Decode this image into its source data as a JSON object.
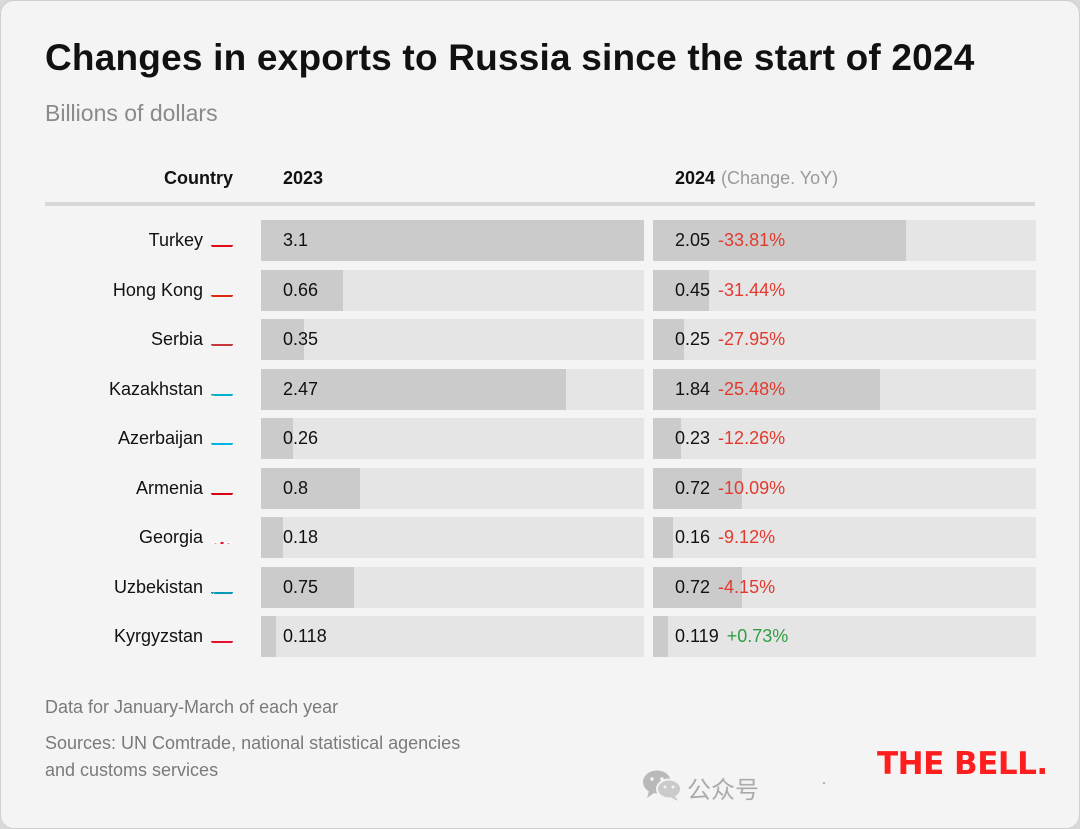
{
  "title": "Changes in exports to Russia since the start of 2024",
  "subtitle": "Billions of dollars",
  "headers": {
    "country": "Country",
    "y2023": "2023",
    "y2024": "2024",
    "y2024_note": "(Change. YoY)"
  },
  "chart_data": {
    "type": "bar",
    "title": "Changes in exports to Russia since the start of 2024",
    "subtitle": "Billions of dollars",
    "xlabel": "",
    "ylabel": "",
    "max_value": 3.1,
    "categories": [
      "Turkey",
      "Hong Kong",
      "Serbia",
      "Kazakhstan",
      "Azerbaijan",
      "Armenia",
      "Georgia",
      "Uzbekistan",
      "Kyrgyzstan"
    ],
    "series": [
      {
        "name": "2023",
        "values": [
          3.1,
          0.66,
          0.35,
          2.47,
          0.26,
          0.8,
          0.18,
          0.75,
          0.118
        ]
      },
      {
        "name": "2024",
        "values": [
          2.05,
          0.45,
          0.25,
          1.84,
          0.23,
          0.72,
          0.16,
          0.72,
          0.119
        ]
      }
    ],
    "labels_2023": [
      "3.1",
      "0.66",
      "0.35",
      "2.47",
      "0.26",
      "0.8",
      "0.18",
      "0.75",
      "0.118"
    ],
    "labels_2024": [
      "2.05",
      "0.45",
      "0.25",
      "1.84",
      "0.23",
      "0.72",
      "0.16",
      "0.72",
      "0.119"
    ],
    "changes": [
      "-33.81%",
      "-31.44%",
      "-27.95%",
      "-25.48%",
      "-12.26%",
      "-10.09%",
      "-9.12%",
      "-4.15%",
      "+0.73%"
    ],
    "flags": [
      "turkey-flag-icon",
      "hong-kong-flag-icon",
      "serbia-flag-icon",
      "kazakhstan-flag-icon",
      "azerbaijan-flag-icon",
      "armenia-flag-icon",
      "georgia-flag-icon",
      "uzbekistan-flag-icon",
      "kyrgyzstan-flag-icon"
    ],
    "colors": {
      "track": "#e5e5e5",
      "bar": "#cbcbcb",
      "negative": "#e23a2e",
      "positive": "#2f9e44"
    }
  },
  "footer": {
    "note": "Data for January-March of each year",
    "sources_line1": "Sources: UN Comtrade, national statistical agencies",
    "sources_line2": "and customs services"
  },
  "logo": "THE BELL.",
  "watermark": {
    "text": "公众号",
    "icon": "wechat-icon"
  }
}
